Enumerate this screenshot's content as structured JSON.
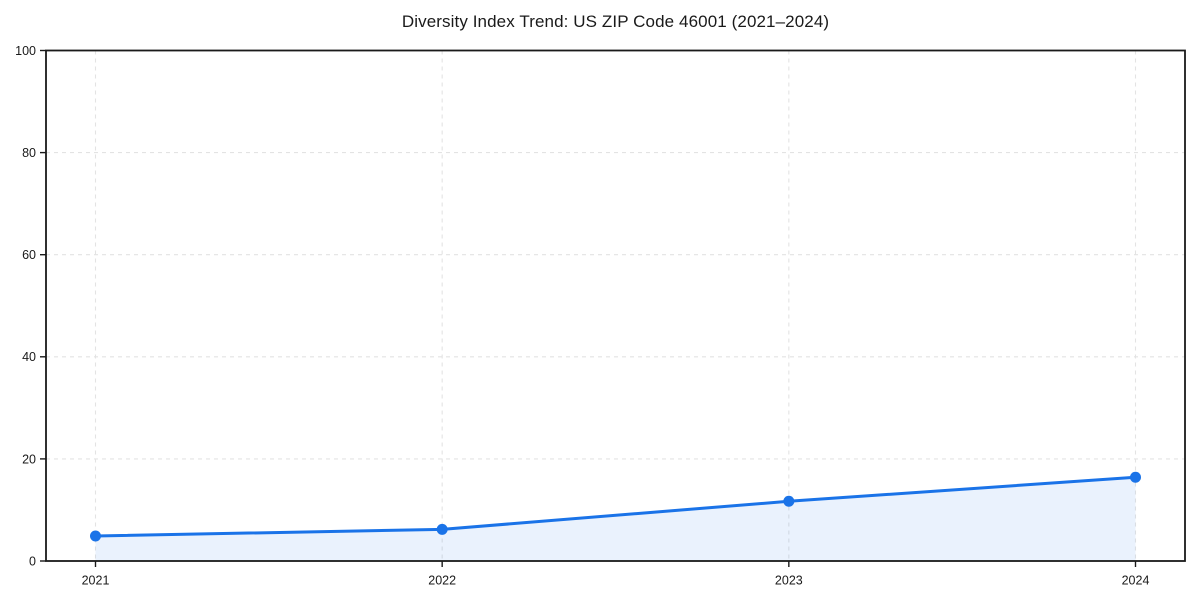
{
  "chart_data": {
    "type": "area",
    "title": "Diversity Index Trend: US ZIP Code 46001 (2021–2024)",
    "series_name": "Diversity Index",
    "x": [
      2021,
      2022,
      2023,
      2024
    ],
    "values": [
      4.9,
      6.2,
      11.7,
      16.4
    ],
    "xticks": [
      "2021",
      "2022",
      "2023",
      "2024"
    ],
    "yticks": [
      0,
      20,
      40,
      60,
      80,
      100
    ],
    "ylim": [
      0,
      100
    ],
    "xlabel": "",
    "ylabel": "",
    "grid": true,
    "grid_style": "dashed",
    "legend": false,
    "colors": {
      "line": "#1a73e8",
      "marker": "#1a73e8",
      "fill": "rgba(26,115,232,0.09)",
      "grid": "#e3e3e3",
      "spine": "#1a1a1a",
      "text": "#1a1a1a",
      "background": "#ffffff"
    }
  }
}
